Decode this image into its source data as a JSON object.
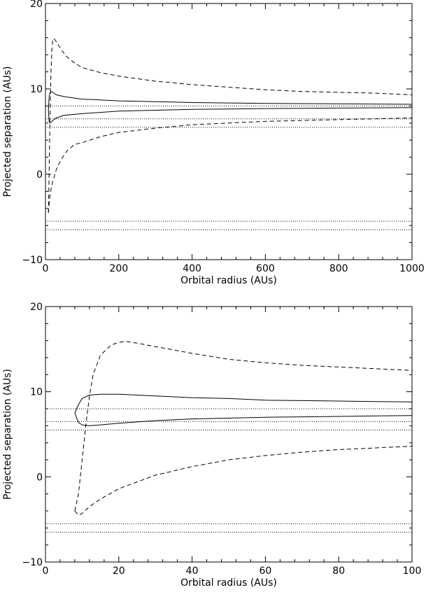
{
  "chart_data": [
    {
      "type": "line",
      "xlabel": "Orbital radius (AUs)",
      "ylabel": "Projected separation (AUs)",
      "xlim": [
        0,
        1000
      ],
      "ylim": [
        -10,
        20
      ],
      "xticks": [
        0,
        200,
        400,
        600,
        800,
        1000
      ],
      "yticks": [
        -10,
        0,
        10,
        20
      ],
      "xtick_labels": [
        "0",
        "200",
        "400",
        "600",
        "800",
        "1000"
      ],
      "ytick_labels": [
        "−10",
        "0",
        "10",
        "20"
      ],
      "grid": false,
      "hlines_dotted": [
        8.0,
        6.5,
        5.5,
        -5.5,
        -6.5
      ],
      "series": [
        {
          "style": "dashed",
          "x": [
            8,
            10,
            12,
            15,
            18,
            20,
            22,
            25,
            30,
            40,
            50,
            60,
            80,
            100,
            150,
            200,
            300,
            400,
            500,
            600,
            700,
            800,
            900,
            1000
          ],
          "y": [
            -4.5,
            0,
            6,
            12,
            15,
            15.7,
            15.9,
            15.8,
            15.5,
            14.8,
            14.2,
            13.7,
            13.0,
            12.5,
            11.9,
            11.5,
            10.9,
            10.5,
            10.2,
            9.9,
            9.7,
            9.6,
            9.5,
            9.3
          ]
        },
        {
          "style": "dashed",
          "x": [
            8,
            10,
            12,
            15,
            20,
            30,
            40,
            50,
            60,
            80,
            100,
            150,
            200,
            300,
            400,
            500,
            600,
            700,
            800,
            900,
            1000
          ],
          "y": [
            -4.5,
            -3.5,
            -2.6,
            -1.8,
            -0.8,
            0.6,
            1.5,
            2.2,
            2.8,
            3.5,
            3.7,
            4.4,
            4.9,
            5.4,
            5.8,
            6.0,
            6.2,
            6.3,
            6.4,
            6.5,
            6.6
          ]
        },
        {
          "style": "solid",
          "x": [
            8,
            10,
            12,
            15,
            20,
            30,
            50,
            100,
            200,
            300,
            400,
            500,
            600,
            800,
            1000
          ],
          "y": [
            7.5,
            9.0,
            9.5,
            9.7,
            9.6,
            9.3,
            9.1,
            8.8,
            8.6,
            8.5,
            8.4,
            8.35,
            8.3,
            8.25,
            8.2
          ],
          "y_lower_branch": [
            7.5,
            6.2,
            6.0,
            6.1,
            6.3,
            6.6,
            6.9,
            7.1,
            7.4,
            7.5,
            7.6,
            7.65,
            7.7,
            7.75,
            7.8
          ]
        }
      ]
    },
    {
      "type": "line",
      "xlabel": "Orbital radius (AUs)",
      "ylabel": "Projected separation (AUs)",
      "xlim": [
        0,
        100
      ],
      "ylim": [
        -10,
        20
      ],
      "xticks": [
        0,
        20,
        40,
        60,
        80,
        100
      ],
      "yticks": [
        -10,
        0,
        10,
        20
      ],
      "xtick_labels": [
        "0",
        "20",
        "40",
        "60",
        "80",
        "100"
      ],
      "ytick_labels": [
        "−10",
        "0",
        "10",
        "20"
      ],
      "grid": false,
      "hlines_dotted": [
        8.0,
        6.5,
        5.5,
        -5.5,
        -6.5
      ],
      "series": [
        {
          "style": "dashed",
          "x": [
            8,
            9,
            10,
            11,
            12,
            13,
            15,
            18,
            20,
            22,
            25,
            30,
            40,
            50,
            60,
            70,
            80,
            90,
            100
          ],
          "y": [
            -4.0,
            -2.0,
            2.0,
            6.0,
            9.5,
            12.0,
            14.3,
            15.5,
            15.8,
            15.9,
            15.7,
            15.3,
            14.5,
            13.8,
            13.4,
            13.1,
            12.9,
            12.7,
            12.5
          ]
        },
        {
          "style": "dashed",
          "x": [
            8,
            9,
            10,
            11,
            12,
            15,
            20,
            25,
            30,
            40,
            50,
            60,
            70,
            80,
            90,
            100
          ],
          "y": [
            -4.0,
            -4.5,
            -4.3,
            -3.9,
            -3.5,
            -2.6,
            -1.4,
            -0.6,
            0.2,
            1.2,
            2.0,
            2.5,
            2.9,
            3.2,
            3.4,
            3.6
          ]
        },
        {
          "style": "solid",
          "x": [
            8,
            9,
            10,
            12,
            15,
            20,
            30,
            40,
            50,
            60,
            70,
            80,
            90,
            100
          ],
          "y": [
            7.5,
            8.5,
            9.2,
            9.6,
            9.7,
            9.7,
            9.5,
            9.3,
            9.2,
            9.0,
            8.95,
            8.9,
            8.85,
            8.8
          ],
          "y_lower_branch": [
            7.5,
            6.4,
            6.1,
            6.0,
            6.1,
            6.3,
            6.6,
            6.8,
            6.9,
            7.0,
            7.05,
            7.1,
            7.15,
            7.2
          ]
        }
      ]
    }
  ]
}
